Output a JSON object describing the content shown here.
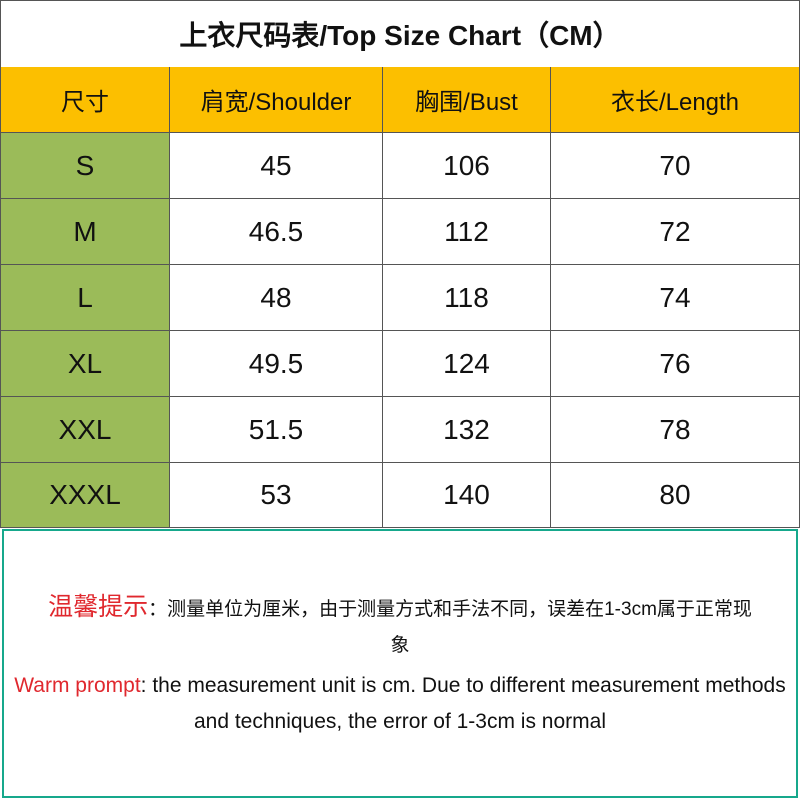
{
  "table": {
    "title": "上衣尺码表/Top Size Chart（CM）",
    "header": [
      "尺寸",
      "肩宽/Shoulder",
      "胸围/Bust",
      "衣长/Length"
    ],
    "rows": [
      [
        "S",
        "45",
        "106",
        "70"
      ],
      [
        "M",
        "46.5",
        "112",
        "72"
      ],
      [
        "L",
        "48",
        "118",
        "74"
      ],
      [
        "XL",
        "49.5",
        "124",
        "76"
      ],
      [
        "XXL",
        "51.5",
        "132",
        "78"
      ],
      [
        "XXXL",
        "53",
        "140",
        "80"
      ]
    ]
  },
  "note": {
    "zh_label": "温馨提示",
    "zh_text": "：测量单位为厘米，由于测量方式和手法不同，误差在1-3cm属于正常现象",
    "en_label": "Warm prompt",
    "en_text": ": the measurement unit is cm. Due to different measurement methods and techniques, the error of 1-3cm is normal"
  }
}
